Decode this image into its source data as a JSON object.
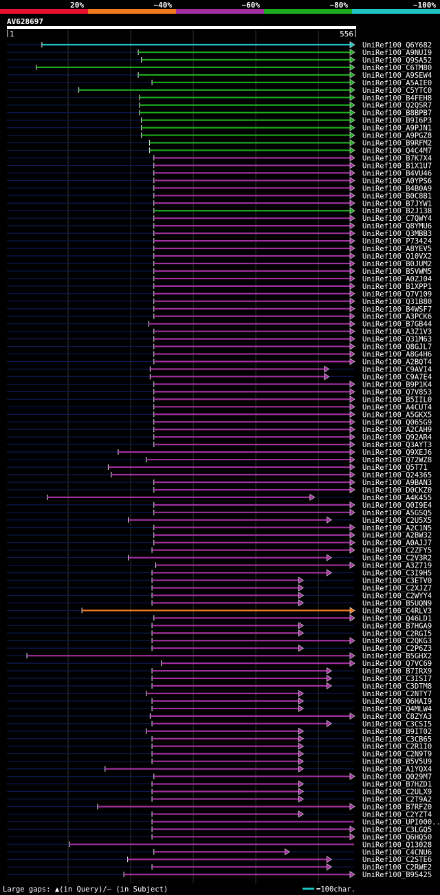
{
  "legend": {
    "labels": [
      "20%",
      "~40%",
      "~60%",
      "~80%",
      "~100%"
    ],
    "colors": [
      "#e8102a",
      "#f07a1e",
      "#a0309e",
      "#1eaa1e",
      "#1ec2c2"
    ]
  },
  "query": {
    "id": "AV628697",
    "start": "1",
    "end": "556",
    "length": 556
  },
  "colors": {
    "background": "#000000",
    "trail": "#0d1a55",
    "gap_marker": "#ffff66",
    "grid": "#333333"
  },
  "footer": {
    "text": "Large gaps: ▲(in Query)/– (in Subject)",
    "scale_label": "=100char."
  },
  "hits": [
    {
      "name": "UniRef100_Q6Y682",
      "c": "cyan",
      "s": 57,
      "e": 556,
      "a": true
    },
    {
      "name": "UniRef100_A9NUI9",
      "c": "green",
      "s": 211,
      "e": 556,
      "a": true
    },
    {
      "name": "UniRef100_Q9SA52",
      "c": "green",
      "s": 216,
      "e": 556,
      "a": true
    },
    {
      "name": "UniRef100_C6TM80",
      "c": "green",
      "s": 48,
      "e": 556,
      "a": true
    },
    {
      "name": "UniRef100_A9SEW4",
      "c": "green",
      "s": 211,
      "e": 556,
      "a": true
    },
    {
      "name": "UniRef100_A5AIE0",
      "c": "green",
      "s": 233,
      "e": 556,
      "a": true
    },
    {
      "name": "UniRef100_C5YTC0",
      "c": "green",
      "s": 116,
      "e": 556,
      "a": true
    },
    {
      "name": "UniRef100_B4FEH8",
      "c": "green",
      "s": 213,
      "e": 556,
      "a": true
    },
    {
      "name": "UniRef100_Q2QSR7",
      "c": "green",
      "s": 213,
      "e": 556,
      "a": true
    },
    {
      "name": "UniRef100_B8BPB7",
      "c": "green",
      "s": 213,
      "e": 556,
      "a": true
    },
    {
      "name": "UniRef100_B9I6P3",
      "c": "green",
      "s": 216,
      "e": 556,
      "a": true
    },
    {
      "name": "UniRef100_A9PJN1",
      "c": "green",
      "s": 216,
      "e": 556,
      "a": true
    },
    {
      "name": "UniRef100_A9PGZ8",
      "c": "green",
      "s": 216,
      "e": 556,
      "a": true
    },
    {
      "name": "UniRef100_B9RFM2",
      "c": "green",
      "s": 229,
      "e": 556,
      "a": true
    },
    {
      "name": "UniRef100_Q4C4M7",
      "c": "green",
      "s": 229,
      "e": 556,
      "a": true
    },
    {
      "name": "UniRef100_B7K7X4",
      "c": "magenta",
      "s": 236,
      "e": 556,
      "a": true
    },
    {
      "name": "UniRef100_B1X1U7",
      "c": "magenta",
      "s": 236,
      "e": 556,
      "a": true
    },
    {
      "name": "UniRef100_B4VU46",
      "c": "magenta",
      "s": 236,
      "e": 556,
      "a": true
    },
    {
      "name": "UniRef100_A0YPS6",
      "c": "magenta",
      "s": 236,
      "e": 556,
      "a": true
    },
    {
      "name": "UniRef100_B4B0A9",
      "c": "magenta",
      "s": 236,
      "e": 556,
      "a": true
    },
    {
      "name": "UniRef100_B0C8B1",
      "c": "magenta",
      "s": 236,
      "e": 556,
      "a": true
    },
    {
      "name": "UniRef100_B7JYW1",
      "c": "magenta",
      "s": 236,
      "e": 556,
      "a": true
    },
    {
      "name": "UniRef100_B2J138",
      "c": "green",
      "s": 236,
      "e": 556,
      "a": true
    },
    {
      "name": "UniRef100_C7QWY4",
      "c": "magenta",
      "s": 236,
      "e": 556,
      "a": true
    },
    {
      "name": "UniRef100_Q8YMU6",
      "c": "magenta",
      "s": 236,
      "e": 556,
      "a": true
    },
    {
      "name": "UniRef100_Q3MBB3",
      "c": "magenta",
      "s": 236,
      "e": 556,
      "a": true
    },
    {
      "name": "UniRef100_P73424",
      "c": "magenta",
      "s": 236,
      "e": 556,
      "a": true
    },
    {
      "name": "UniRef100_A8YEV5",
      "c": "magenta",
      "s": 236,
      "e": 556,
      "a": true
    },
    {
      "name": "UniRef100_Q10VX2",
      "c": "magenta",
      "s": 236,
      "e": 556,
      "a": true
    },
    {
      "name": "UniRef100_B0JUM2",
      "c": "magenta",
      "s": 236,
      "e": 556,
      "a": true
    },
    {
      "name": "UniRef100_B5VWM5",
      "c": "magenta",
      "s": 236,
      "e": 556,
      "a": true
    },
    {
      "name": "UniRef100_A0ZJ04",
      "c": "magenta",
      "s": 236,
      "e": 556,
      "a": true
    },
    {
      "name": "UniRef100_B1XPP1",
      "c": "magenta",
      "s": 236,
      "e": 556,
      "a": true
    },
    {
      "name": "UniRef100_Q7V109",
      "c": "magenta",
      "s": 236,
      "e": 556,
      "a": true
    },
    {
      "name": "UniRef100_Q31B80",
      "c": "magenta",
      "s": 236,
      "e": 556,
      "a": true
    },
    {
      "name": "UniRef100_B4WSF7",
      "c": "magenta",
      "s": 236,
      "e": 556,
      "a": true
    },
    {
      "name": "UniRef100_A3PCK6",
      "c": "magenta",
      "s": 236,
      "e": 556,
      "a": true
    },
    {
      "name": "UniRef100_B7GB44",
      "c": "magenta",
      "s": 228,
      "e": 556,
      "a": true
    },
    {
      "name": "UniRef100_A3Z1V3",
      "c": "magenta",
      "s": 236,
      "e": 556,
      "a": true
    },
    {
      "name": "UniRef100_Q31M63",
      "c": "magenta",
      "s": 236,
      "e": 556,
      "a": true
    },
    {
      "name": "UniRef100_Q8GJL7",
      "c": "magenta",
      "s": 236,
      "e": 556,
      "a": true
    },
    {
      "name": "UniRef100_A8G4H6",
      "c": "magenta",
      "s": 236,
      "e": 556,
      "a": true
    },
    {
      "name": "UniRef100_A2BQT4",
      "c": "magenta",
      "s": 236,
      "e": 556,
      "a": true
    },
    {
      "name": "UniRef100_C9AVI4",
      "c": "magenta",
      "s": 230,
      "e": 515,
      "a": true
    },
    {
      "name": "UniRef100_C9A7E4",
      "c": "magenta",
      "s": 230,
      "e": 515,
      "a": true
    },
    {
      "name": "UniRef100_B9P1K4",
      "c": "magenta",
      "s": 236,
      "e": 556,
      "a": true
    },
    {
      "name": "UniRef100_Q7V853",
      "c": "magenta",
      "s": 236,
      "e": 556,
      "a": true
    },
    {
      "name": "UniRef100_B5IIL0",
      "c": "magenta",
      "s": 236,
      "e": 556,
      "a": true
    },
    {
      "name": "UniRef100_A4CUT4",
      "c": "magenta",
      "s": 236,
      "e": 556,
      "a": true
    },
    {
      "name": "UniRef100_A5GKX5",
      "c": "magenta",
      "s": 236,
      "e": 556,
      "a": true
    },
    {
      "name": "UniRef100_Q065G9",
      "c": "magenta",
      "s": 236,
      "e": 556,
      "a": true
    },
    {
      "name": "UniRef100_A2CAH9",
      "c": "magenta",
      "s": 236,
      "e": 556,
      "a": true
    },
    {
      "name": "UniRef100_Q92AR4",
      "c": "magenta",
      "s": 236,
      "e": 556,
      "a": true
    },
    {
      "name": "UniRef100_Q3AYT3",
      "c": "magenta",
      "s": 236,
      "e": 556,
      "a": true
    },
    {
      "name": "UniRef100_Q9XEJ6",
      "c": "magenta",
      "s": 179,
      "e": 556,
      "a": true
    },
    {
      "name": "UniRef100_Q72WZ8",
      "c": "magenta",
      "s": 224,
      "e": 556,
      "a": true
    },
    {
      "name": "UniRef100_Q5T71",
      "c": "magenta",
      "s": 163,
      "e": 556,
      "a": true
    },
    {
      "name": "UniRef100_Q24365",
      "c": "magenta",
      "s": 168,
      "e": 556,
      "a": true
    },
    {
      "name": "UniRef100_A9BAN3",
      "c": "magenta",
      "s": 236,
      "e": 556,
      "a": true
    },
    {
      "name": "UniRef100_D0CKZ0",
      "c": "magenta",
      "s": 236,
      "e": 556,
      "a": true
    },
    {
      "name": "UniRef100_A4K455",
      "c": "magenta",
      "s": 66,
      "e": 492,
      "a": true
    },
    {
      "name": "UniRef100_Q0I9E4",
      "c": "magenta",
      "s": 236,
      "e": 556,
      "a": true
    },
    {
      "name": "UniRef100_A5GSQ5",
      "c": "magenta",
      "s": 236,
      "e": 556,
      "a": true
    },
    {
      "name": "UniRef100_C2U5X5",
      "c": "magenta",
      "s": 195,
      "e": 519,
      "a": true
    },
    {
      "name": "UniRef100_A2C1N5",
      "c": "magenta",
      "s": 236,
      "e": 556,
      "a": true
    },
    {
      "name": "UniRef100_A2BW32",
      "c": "magenta",
      "s": 236,
      "e": 556,
      "a": true
    },
    {
      "name": "UniRef100_A0AJJ7",
      "c": "magenta",
      "s": 236,
      "e": 556,
      "a": true
    },
    {
      "name": "UniRef100_C2ZFY5",
      "c": "magenta",
      "s": 233,
      "e": 556,
      "a": true
    },
    {
      "name": "UniRef100_C2V3R2",
      "c": "magenta",
      "s": 195,
      "e": 519,
      "a": true
    },
    {
      "name": "UniRef100_A3Z719",
      "c": "magenta",
      "s": 239,
      "e": 556,
      "a": true
    },
    {
      "name": "UniRef100_C3I9H5",
      "c": "magenta",
      "s": 233,
      "e": 519,
      "a": true
    },
    {
      "name": "UniRef100_C3ETV0",
      "c": "magenta",
      "s": 233,
      "e": 474,
      "a": true
    },
    {
      "name": "UniRef100_C2XJZ7",
      "c": "magenta",
      "s": 233,
      "e": 474,
      "a": true
    },
    {
      "name": "UniRef100_C2WYY4",
      "c": "magenta",
      "s": 233,
      "e": 474,
      "a": true
    },
    {
      "name": "UniRef100_B5UQN9",
      "c": "magenta",
      "s": 233,
      "e": 474,
      "a": true
    },
    {
      "name": "UniRef100_C4RLV3",
      "c": "orange",
      "s": 121,
      "e": 556,
      "a": true
    },
    {
      "name": "UniRef100_Q46LD1",
      "c": "magenta",
      "s": 236,
      "e": 556,
      "a": true
    },
    {
      "name": "UniRef100_B7HGA9",
      "c": "magenta",
      "s": 233,
      "e": 474,
      "a": true
    },
    {
      "name": "UniRef100_C2RGI5",
      "c": "magenta",
      "s": 233,
      "e": 474,
      "a": true
    },
    {
      "name": "UniRef100_C2QKG3",
      "c": "magenta",
      "s": 233,
      "e": 556,
      "a": true
    },
    {
      "name": "UniRef100_C2P6Z3",
      "c": "magenta",
      "s": 233,
      "e": 474,
      "a": true
    },
    {
      "name": "UniRef100_B5GHX2",
      "c": "magenta",
      "s": 33,
      "e": 556,
      "a": true
    },
    {
      "name": "UniRef100_Q7VC69",
      "c": "magenta",
      "s": 248,
      "e": 556,
      "a": true
    },
    {
      "name": "UniRef100_B7IRX9",
      "c": "magenta",
      "s": 233,
      "e": 519,
      "a": true
    },
    {
      "name": "UniRef100_C3ISI7",
      "c": "magenta",
      "s": 233,
      "e": 519,
      "a": true
    },
    {
      "name": "UniRef100_C3DTM8",
      "c": "magenta",
      "s": 233,
      "e": 519,
      "a": true
    },
    {
      "name": "UniRef100_C2NTY7",
      "c": "magenta",
      "s": 224,
      "e": 474,
      "a": true
    },
    {
      "name": "UniRef100_Q6HAI9",
      "c": "magenta",
      "s": 233,
      "e": 474,
      "a": true
    },
    {
      "name": "UniRef100_Q4MLW4",
      "c": "magenta",
      "s": 233,
      "e": 474,
      "a": true
    },
    {
      "name": "UniRef100_C8ZYA3",
      "c": "magenta",
      "s": 230,
      "e": 556,
      "a": true
    },
    {
      "name": "UniRef100_C3CSI5",
      "c": "magenta",
      "s": 233,
      "e": 519,
      "a": true
    },
    {
      "name": "UniRef100_B9IT02",
      "c": "magenta",
      "s": 224,
      "e": 474,
      "a": true
    },
    {
      "name": "UniRef100_C3CB65",
      "c": "magenta",
      "s": 233,
      "e": 474,
      "a": true
    },
    {
      "name": "UniRef100_C2R1I0",
      "c": "magenta",
      "s": 233,
      "e": 474,
      "a": true
    },
    {
      "name": "UniRef100_C2N9T9",
      "c": "magenta",
      "s": 233,
      "e": 474,
      "a": true
    },
    {
      "name": "UniRef100_B5V5U9",
      "c": "magenta",
      "s": 233,
      "e": 474,
      "a": true
    },
    {
      "name": "UniRef100_A1YQX4",
      "c": "magenta",
      "s": 158,
      "e": 474,
      "a": true
    },
    {
      "name": "UniRef100_Q029M7",
      "c": "magenta",
      "s": 236,
      "e": 556,
      "a": true
    },
    {
      "name": "UniRef100_B7HZD1",
      "c": "magenta",
      "s": 233,
      "e": 474,
      "a": true
    },
    {
      "name": "UniRef100_C2ULX9",
      "c": "magenta",
      "s": 233,
      "e": 474,
      "a": true
    },
    {
      "name": "UniRef100_C2T9A2",
      "c": "magenta",
      "s": 233,
      "e": 474,
      "a": true
    },
    {
      "name": "UniRef100_B7RFZ0",
      "c": "magenta",
      "s": 146,
      "e": 556,
      "a": true
    },
    {
      "name": "UniRef100_C2YZT4",
      "c": "magenta",
      "s": 233,
      "e": 474,
      "a": true
    },
    {
      "name": "UniRef100_UPI000..",
      "c": "magenta",
      "s": 233,
      "e": 556,
      "a": false
    },
    {
      "name": "UniRef100_C3LGQ5",
      "c": "magenta",
      "s": 233,
      "e": 556,
      "a": true
    },
    {
      "name": "UniRef100_Q6HQ50",
      "c": "magenta",
      "s": 233,
      "e": 556,
      "a": true
    },
    {
      "name": "UniRef100_Q13028",
      "c": "magenta",
      "s": 101,
      "e": 556,
      "a": false
    },
    {
      "name": "UniRef100_C4CNU6",
      "c": "magenta",
      "s": 236,
      "e": 452,
      "a": true
    },
    {
      "name": "UniRef100_C2STE6",
      "c": "magenta",
      "s": 194,
      "e": 519,
      "a": true
    },
    {
      "name": "UniRef100_C2RWE2",
      "c": "magenta",
      "s": 233,
      "e": 519,
      "a": true
    },
    {
      "name": "UniRef100_B9S425",
      "c": "magenta",
      "s": 188,
      "e": 556,
      "a": true
    }
  ]
}
